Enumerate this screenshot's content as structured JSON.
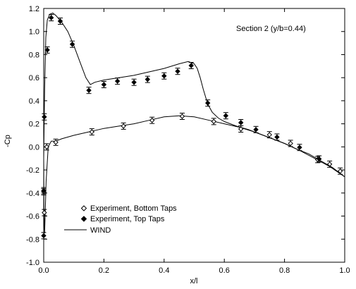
{
  "chart_data": {
    "type": "line",
    "title": "",
    "annotation": "Section 2 (y/b=0.44)",
    "xlabel": "x/l",
    "ylabel": "-Cp",
    "xlim": [
      0,
      1
    ],
    "ylim": [
      -1,
      1.2
    ],
    "x_ticks": [
      "0.0",
      "0.2",
      "0.4",
      "0.6",
      "0.8",
      "1.0"
    ],
    "x_tick_values": [
      0,
      0.2,
      0.4,
      0.6,
      0.8,
      1.0
    ],
    "y_ticks": [
      "-1.0",
      "-0.8",
      "-0.6",
      "-0.4",
      "-0.2",
      "0.0",
      "0.2",
      "0.4",
      "0.6",
      "0.8",
      "1.0",
      "1.2"
    ],
    "y_tick_values": [
      -1.0,
      -0.8,
      -0.6,
      -0.4,
      -0.2,
      0.0,
      0.2,
      0.4,
      0.6,
      0.8,
      1.0,
      1.2
    ],
    "grid": false,
    "legend_position": "lower-left",
    "series": [
      {
        "name": "Experiment, Bottom Taps",
        "kind": "scatter",
        "marker": "open-diamond",
        "error_bars": true,
        "points": [
          {
            "x": 0.0,
            "y": -0.39
          },
          {
            "x": 0.002,
            "y": -0.57
          },
          {
            "x": 0.01,
            "y": 0.0
          },
          {
            "x": 0.04,
            "y": 0.04
          },
          {
            "x": 0.16,
            "y": 0.13
          },
          {
            "x": 0.265,
            "y": 0.18
          },
          {
            "x": 0.36,
            "y": 0.23
          },
          {
            "x": 0.46,
            "y": 0.265
          },
          {
            "x": 0.565,
            "y": 0.22
          },
          {
            "x": 0.655,
            "y": 0.155
          },
          {
            "x": 0.75,
            "y": 0.105
          },
          {
            "x": 0.82,
            "y": 0.03
          },
          {
            "x": 0.91,
            "y": -0.11
          },
          {
            "x": 0.95,
            "y": -0.15
          },
          {
            "x": 0.985,
            "y": -0.21
          }
        ]
      },
      {
        "name": "Experiment, Top Taps",
        "kind": "scatter",
        "marker": "filled-diamond",
        "error_bars": true,
        "points": [
          {
            "x": 0.0,
            "y": -0.77
          },
          {
            "x": 0.0,
            "y": -0.38
          },
          {
            "x": 0.002,
            "y": 0.26
          },
          {
            "x": 0.012,
            "y": 0.84
          },
          {
            "x": 0.025,
            "y": 1.12
          },
          {
            "x": 0.055,
            "y": 1.09
          },
          {
            "x": 0.095,
            "y": 0.89
          },
          {
            "x": 0.15,
            "y": 0.49
          },
          {
            "x": 0.2,
            "y": 0.54
          },
          {
            "x": 0.245,
            "y": 0.57
          },
          {
            "x": 0.3,
            "y": 0.56
          },
          {
            "x": 0.345,
            "y": 0.585
          },
          {
            "x": 0.4,
            "y": 0.615
          },
          {
            "x": 0.445,
            "y": 0.655
          },
          {
            "x": 0.49,
            "y": 0.705
          },
          {
            "x": 0.545,
            "y": 0.38
          },
          {
            "x": 0.605,
            "y": 0.27
          },
          {
            "x": 0.655,
            "y": 0.21
          },
          {
            "x": 0.705,
            "y": 0.15
          },
          {
            "x": 0.775,
            "y": 0.085
          },
          {
            "x": 0.85,
            "y": -0.005
          },
          {
            "x": 0.915,
            "y": -0.105
          }
        ]
      },
      {
        "name": "WIND",
        "kind": "line",
        "segments": [
          {
            "part": "upper",
            "x": [
              1.0,
              0.96,
              0.92,
              0.88,
              0.84,
              0.8,
              0.76,
              0.72,
              0.68,
              0.64,
              0.6,
              0.58,
              0.56,
              0.545,
              0.53,
              0.52,
              0.51,
              0.5,
              0.48,
              0.45,
              0.4,
              0.35,
              0.3,
              0.25,
              0.2,
              0.17,
              0.155,
              0.14,
              0.12,
              0.1,
              0.08,
              0.06,
              0.04,
              0.03,
              0.02,
              0.012,
              0.007,
              0.003,
              0.0
            ],
            "y": [
              -0.26,
              -0.18,
              -0.12,
              -0.06,
              -0.02,
              0.03,
              0.07,
              0.11,
              0.15,
              0.18,
              0.22,
              0.25,
              0.3,
              0.37,
              0.5,
              0.6,
              0.68,
              0.72,
              0.74,
              0.72,
              0.68,
              0.65,
              0.62,
              0.6,
              0.58,
              0.56,
              0.54,
              0.6,
              0.74,
              0.88,
              1.0,
              1.08,
              1.14,
              1.16,
              1.15,
              1.1,
              0.95,
              0.5,
              -0.1
            ]
          },
          {
            "part": "lower",
            "x": [
              0.0,
              0.001,
              0.003,
              0.008,
              0.015,
              0.025,
              0.04,
              0.06,
              0.1,
              0.15,
              0.2,
              0.25,
              0.3,
              0.35,
              0.4,
              0.45,
              0.5,
              0.55,
              0.6,
              0.65,
              0.7,
              0.75,
              0.8,
              0.85,
              0.9,
              0.95,
              1.0
            ],
            "y": [
              -0.1,
              -0.55,
              -0.75,
              -0.3,
              0.0,
              0.05,
              0.05,
              0.07,
              0.1,
              0.13,
              0.16,
              0.18,
              0.2,
              0.23,
              0.26,
              0.27,
              0.26,
              0.23,
              0.2,
              0.17,
              0.13,
              0.08,
              0.03,
              -0.03,
              -0.1,
              -0.17,
              -0.26
            ]
          }
        ]
      }
    ]
  }
}
